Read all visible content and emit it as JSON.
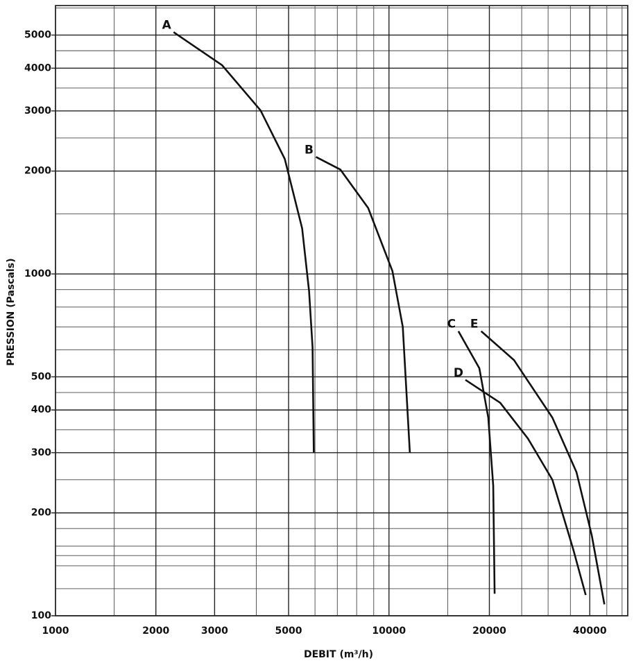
{
  "chart_data": {
    "type": "line",
    "x_label": "DEBIT (m³/h)",
    "y_label": "PRESSION  (Pascals)",
    "log_x": true,
    "log_y": true,
    "grid": true,
    "xlim": [
      1000,
      52000
    ],
    "ylim": [
      100,
      6100
    ],
    "xticks": [
      1000,
      2000,
      3000,
      5000,
      10000,
      20000,
      40000
    ],
    "yticks": [
      100,
      200,
      300,
      400,
      500,
      1000,
      2000,
      3000,
      4000,
      5000
    ],
    "minor_xticks": [
      1500,
      4000,
      6000,
      7000,
      8000,
      9000,
      15000,
      25000,
      30000,
      35000,
      45000,
      50000
    ],
    "minor_yticks": [
      120,
      140,
      150,
      160,
      180,
      250,
      350,
      450,
      600,
      700,
      800,
      900,
      1500,
      2500,
      3500,
      4500,
      6000
    ],
    "series": [
      {
        "name": "A",
        "color": "#111111",
        "x": [
          2260,
          3160,
          4120,
          4870,
          5490,
          5760,
          5900,
          5950
        ],
        "values": [
          5100,
          4080,
          3010,
          2170,
          1360,
          890,
          610,
          300
        ]
      },
      {
        "name": "B",
        "color": "#111111",
        "x": [
          6040,
          7150,
          8660,
          10240,
          11000,
          11550
        ],
        "values": [
          2200,
          2020,
          1560,
          1020,
          700,
          300
        ]
      },
      {
        "name": "C",
        "color": "#111111",
        "x": [
          16150,
          18660,
          19850,
          20540,
          20740
        ],
        "values": [
          680,
          530,
          380,
          240,
          116
        ]
      },
      {
        "name": "D",
        "color": "#111111",
        "x": [
          16950,
          21550,
          26100,
          30900,
          35650,
          38900
        ],
        "values": [
          490,
          420,
          330,
          250,
          157,
          115
        ]
      },
      {
        "name": "E",
        "color": "#111111",
        "x": [
          18900,
          23700,
          30900,
          36500,
          40550,
          44250
        ],
        "values": [
          680,
          560,
          380,
          263,
          172,
          108
        ]
      }
    ]
  }
}
